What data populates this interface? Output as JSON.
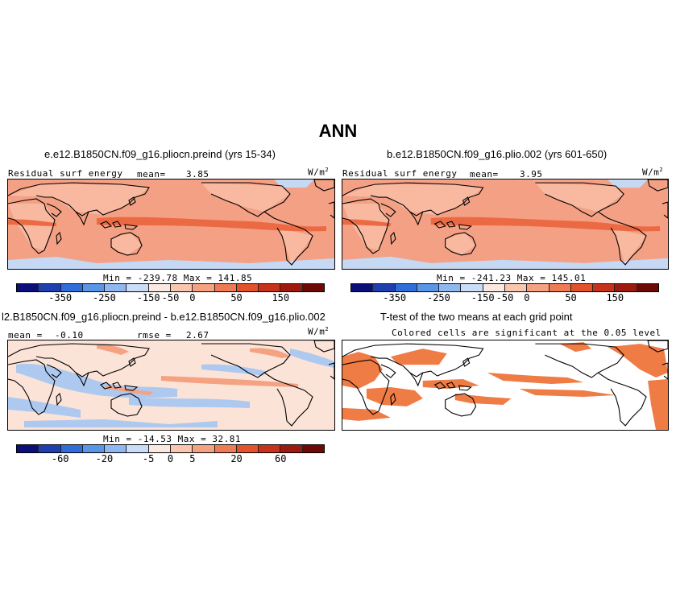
{
  "page_title": "ANN",
  "panels": {
    "p1": {
      "title": "e.e12.B1850CN.f09_g16.pliocn.preind (yrs 15-34)",
      "field_label": "Residual surf energy",
      "mean_label": "mean=",
      "mean_value": "3.85",
      "units": "W/m",
      "units_exp": "2",
      "minmax": "Min = -239.78 Max = 141.85"
    },
    "p2": {
      "title": "b.e12.B1850CN.f09_g16.plio.002 (yrs 601-650)",
      "field_label": "Residual surf energy",
      "mean_label": "mean=",
      "mean_value": "3.95",
      "units": "W/m",
      "units_exp": "2",
      "minmax": "Min = -241.23 Max = 145.01"
    },
    "p3": {
      "title": "l2.B1850CN.f09_g16.pliocn.preind - b.e12.B1850CN.f09_g16.plio.002",
      "mean_label": "mean =",
      "mean_value": "-0.10",
      "rmse_label": "rmse =",
      "rmse_value": "2.67",
      "units": "W/m",
      "units_exp": "2",
      "minmax": "Min = -14.53 Max = 32.81"
    },
    "p4": {
      "title": "T-test of the two means at each grid point",
      "subtitle": "Colored cells are significant at the 0.05 level"
    }
  },
  "colorbars": {
    "main": {
      "colors": [
        "#0b0f7a",
        "#1d3fb0",
        "#2f6ed8",
        "#5a96e8",
        "#8fb8f2",
        "#c9dcf8",
        "#fbe9e1",
        "#f9c6b0",
        "#f5a283",
        "#ef7b55",
        "#e4522c",
        "#c7321a",
        "#9e1a0e",
        "#6e0a06"
      ],
      "ticks": [
        "-350",
        "-250",
        "-150",
        "-50",
        "0",
        "50",
        "150"
      ]
    },
    "diff": {
      "colors": [
        "#0b0f7a",
        "#1d3fb0",
        "#2f6ed8",
        "#5a96e8",
        "#8fb8f2",
        "#c9dcf8",
        "#fbe9e1",
        "#f9c6b0",
        "#f5a283",
        "#ef7b55",
        "#e4522c",
        "#c7321a",
        "#9e1a0e",
        "#6e0a06"
      ],
      "ticks": [
        "-60",
        "-20",
        "-5",
        "0",
        "5",
        "20",
        "60"
      ]
    }
  },
  "map_colors": {
    "land": "#f8b9a0",
    "ocean_warm": "#f4a084",
    "ocean_hot": "#eb6a44",
    "cold_patch": "#c5d9f5",
    "diff_bg": "#fbe3d7",
    "diff_blue": "#aec9ef",
    "diff_red": "#f5a283",
    "ttest": "#ef7b45"
  }
}
